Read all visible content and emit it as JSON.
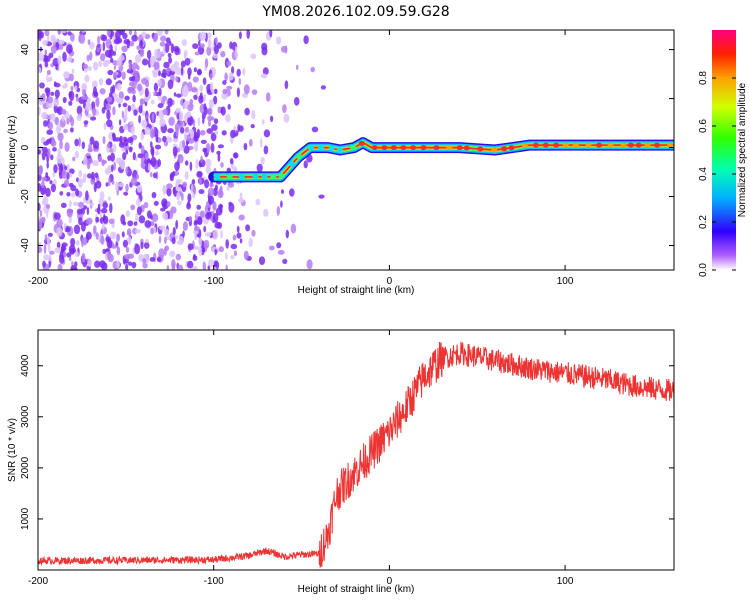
{
  "chart_data": [
    {
      "type": "heatmap",
      "title": "YM08.2026.102.09.59.G28",
      "xlabel": "Height of straight line (km)",
      "ylabel": "Frequency (Hz)",
      "xlim": [
        -200,
        162
      ],
      "ylim": [
        -50,
        48
      ],
      "xticks": [
        -200,
        -100,
        0,
        100
      ],
      "yticks": [
        -40,
        -20,
        0,
        20,
        40
      ],
      "colorbar": {
        "label": "Normalized spectral amplitude",
        "range": [
          0,
          1
        ],
        "ticks": [
          "0.0",
          "0.2",
          "0.4",
          "0.6",
          "0.8"
        ]
      },
      "ridge": {
        "x": [
          -100,
          -62,
          -52,
          -45,
          -35,
          -28,
          -20,
          -15,
          -10,
          0,
          40,
          60,
          80,
          100,
          110,
          162
        ],
        "frequency": [
          -12,
          -12,
          -4,
          0,
          0,
          -1,
          0,
          2,
          0,
          0,
          0,
          -1,
          1,
          1,
          1,
          1
        ]
      }
    },
    {
      "type": "line",
      "title": "",
      "xlabel": "Height of straight line (km)",
      "ylabel": "SNR (10 * v/v)",
      "xlim": [
        -200,
        162
      ],
      "ylim": [
        0,
        4700
      ],
      "xticks": [
        -200,
        -100,
        0,
        100
      ],
      "yticks": [
        1000,
        2000,
        3000,
        4000
      ],
      "series": [
        {
          "name": "SNR",
          "color": "#ee3333",
          "x": [
            -200,
            -150,
            -100,
            -80,
            -70,
            -60,
            -50,
            -40,
            -35,
            -30,
            -20,
            -10,
            0,
            10,
            20,
            30,
            40,
            60,
            80,
            100,
            120,
            140,
            162
          ],
          "values": [
            180,
            190,
            200,
            280,
            380,
            260,
            300,
            320,
            700,
            1500,
            1900,
            2300,
            2700,
            3200,
            3800,
            4150,
            4250,
            4100,
            3950,
            3850,
            3750,
            3600,
            3500
          ]
        }
      ]
    }
  ]
}
